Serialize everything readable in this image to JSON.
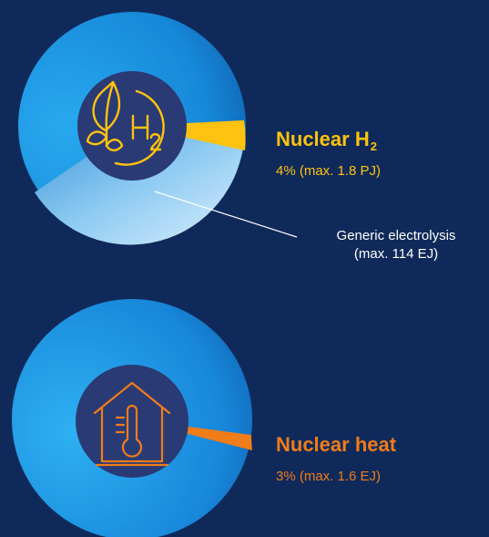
{
  "chart_data": [
    {
      "type": "pie",
      "slices": [
        {
          "label": "Nuclear H2",
          "value": 4,
          "max": "max. 1.8 PJ"
        },
        {
          "label": "Generic electrolysis",
          "max": "max. 114 EJ"
        }
      ],
      "icon": "leaf-h2-icon"
    },
    {
      "type": "pie",
      "slices": [
        {
          "label": "Nuclear heat",
          "value": 3,
          "max": "max. 1.6 EJ"
        }
      ],
      "icon": "house-thermometer-icon"
    }
  ],
  "labels": {
    "h2_title": "Nuclear H",
    "h2_sub": "2",
    "h2_value": "4% (max. 1.8 PJ)",
    "electrolysis_line1": "Generic electrolysis",
    "electrolysis_line2": "(max. 114 EJ)",
    "heat_title": "Nuclear heat",
    "heat_value": "3% (max. 1.6 EJ)"
  },
  "colors": {
    "background": "#0f2a5a",
    "pie_blue": "#1a8fe0",
    "pie_light": "#bfe3fa",
    "inner_circle": "#2a3a74",
    "h2_accent": "#ffc20e",
    "heat_accent": "#f07c1a"
  }
}
